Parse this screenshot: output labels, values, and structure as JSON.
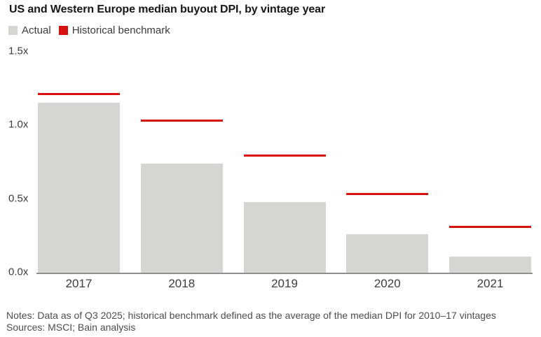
{
  "title": "US and Western Europe median buyout DPI, by vintage year",
  "colors": {
    "actual_gray": "#d6d5d2",
    "benchmark_red": "#d81010",
    "axis_gray": "#8f8f8f"
  },
  "chart_data": {
    "type": "bar",
    "categories": [
      "2017",
      "2018",
      "2019",
      "2020",
      "2021"
    ],
    "series": [
      {
        "name": "Actual",
        "mark": "bar",
        "color": "#d6d5d2",
        "values": [
          1.15,
          0.74,
          0.48,
          0.26,
          0.11
        ]
      },
      {
        "name": "Historical benchmark",
        "mark": "line",
        "color": "#d81010",
        "values": [
          1.21,
          1.03,
          0.79,
          0.53,
          0.31
        ]
      }
    ],
    "title": "US and Western Europe median buyout DPI, by vintage year",
    "xlabel": "",
    "ylabel": "",
    "ylim": [
      0,
      1.5
    ],
    "yticks": [
      {
        "value": 1.5,
        "label": "1.5x"
      },
      {
        "value": 1.0,
        "label": "1.0x"
      },
      {
        "value": 0.5,
        "label": "0.5x"
      },
      {
        "value": 0.0,
        "label": "0.0x"
      }
    ],
    "grid": false,
    "legend_position": "top-left"
  },
  "notes": "Notes: Data as of Q3 2025; historical benchmark defined as the average of the median DPI for 2010–17 vintages",
  "sources": "Sources: MSCI; Bain analysis"
}
